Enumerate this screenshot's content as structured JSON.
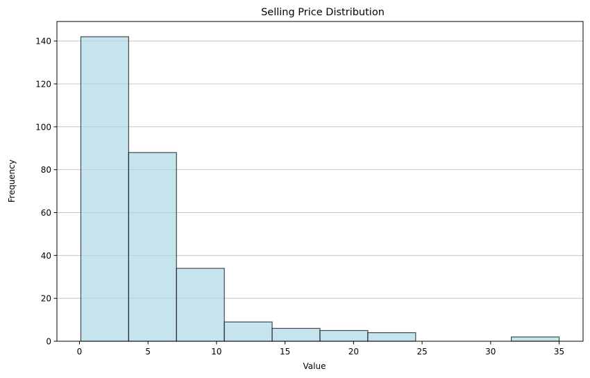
{
  "chart_data": {
    "type": "bar",
    "title": "Selling Price Distribution",
    "xlabel": "Value",
    "ylabel": "Frequency",
    "bins": [
      {
        "start": 0.1,
        "end": 3.59,
        "count": 142
      },
      {
        "start": 3.59,
        "end": 7.08,
        "count": 88
      },
      {
        "start": 7.08,
        "end": 10.57,
        "count": 34
      },
      {
        "start": 10.57,
        "end": 14.06,
        "count": 9
      },
      {
        "start": 14.06,
        "end": 17.55,
        "count": 6
      },
      {
        "start": 17.55,
        "end": 21.04,
        "count": 5
      },
      {
        "start": 21.04,
        "end": 24.53,
        "count": 4
      },
      {
        "start": 24.53,
        "end": 28.02,
        "count": 0
      },
      {
        "start": 28.02,
        "end": 31.51,
        "count": 0
      },
      {
        "start": 31.51,
        "end": 35.0,
        "count": 2
      }
    ],
    "xlim": [
      -1.645,
      36.745
    ],
    "ylim": [
      0,
      149.1
    ],
    "xticks": [
      0,
      5,
      10,
      15,
      20,
      25,
      30,
      35
    ],
    "yticks": [
      0,
      20,
      40,
      60,
      80,
      100,
      120,
      140
    ],
    "grid": "horizontal",
    "colors": {
      "bar_fill": "#add8e6",
      "bar_edge": "#000000"
    }
  }
}
